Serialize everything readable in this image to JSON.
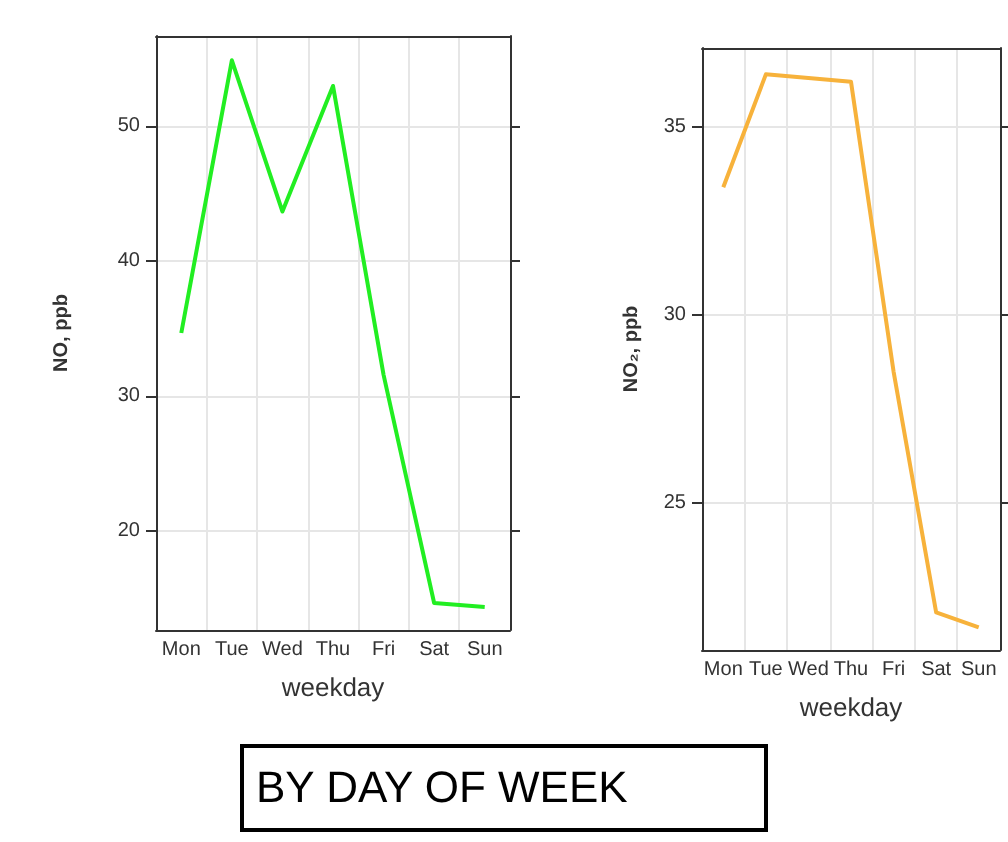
{
  "chart_data": [
    {
      "type": "line",
      "xlabel": "weekday",
      "ylabel": "NO, ppb",
      "categories": [
        "Mon",
        "Tue",
        "Wed",
        "Thu",
        "Fri",
        "Sat",
        "Sun"
      ],
      "series": [
        {
          "color": "#22ee22",
          "values": [
            34.7,
            54.9,
            43.7,
            53.0,
            31.6,
            14.7,
            14.4
          ]
        }
      ],
      "ylim": [
        12.7,
        56.7
      ],
      "yticks": [
        20,
        30,
        40,
        50
      ],
      "grid": true,
      "marker": "none",
      "annotations": [
        "BY DAY OF WEEK"
      ]
    },
    {
      "type": "line",
      "xlabel": "weekday",
      "ylabel": "NO₂, ppb",
      "categories": [
        "Mon",
        "Tue",
        "Wed",
        "Thu",
        "Fri",
        "Sat",
        "Sun"
      ],
      "series": [
        {
          "color": "#f7b23b",
          "values": [
            33.4,
            36.4,
            36.3,
            36.2,
            28.5,
            22.1,
            21.7
          ]
        }
      ],
      "ylim": [
        21.1,
        37.1
      ],
      "yticks": [
        25,
        30,
        35
      ],
      "grid": true,
      "marker": "none"
    }
  ]
}
